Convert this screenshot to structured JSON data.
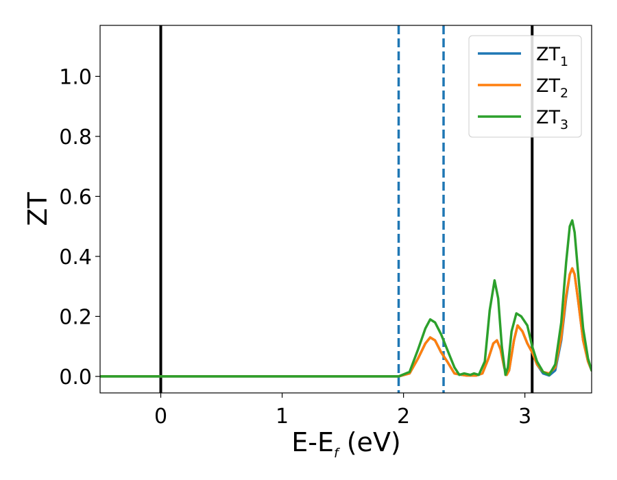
{
  "chart_data": {
    "type": "line",
    "title": "",
    "xlabel": {
      "base": "E-E",
      "sub": "f",
      "unit": " (eV)"
    },
    "ylabel": "ZT",
    "xlim": [
      -0.5,
      3.55
    ],
    "ylim": [
      -0.055,
      1.17
    ],
    "xticks": [
      0,
      1,
      2,
      3
    ],
    "yticks": [
      0.0,
      0.2,
      0.4,
      0.6,
      0.8,
      1.0
    ],
    "ytick_labels": [
      "0.0",
      "0.2",
      "0.4",
      "0.6",
      "0.8",
      "1.0"
    ],
    "grid": false,
    "legend_position": "top-right",
    "vlines": [
      {
        "x": 0.0,
        "style": "solid",
        "color": "#000000"
      },
      {
        "x": 3.06,
        "style": "solid",
        "color": "#000000"
      },
      {
        "x": 1.96,
        "style": "dashed",
        "color": "#1f77b4"
      },
      {
        "x": 2.33,
        "style": "dashed",
        "color": "#1f77b4"
      }
    ],
    "series": [
      {
        "name": "ZT",
        "sub": "1",
        "color": "#1f77b4",
        "x": [
          -0.5,
          1.96,
          2.05,
          2.12,
          2.18,
          2.22,
          2.26,
          2.31,
          2.36,
          2.42,
          2.48,
          2.52,
          2.56,
          2.6,
          2.65,
          2.7,
          2.74,
          2.77,
          2.8,
          2.83,
          2.85,
          2.87,
          2.91,
          2.94,
          2.98,
          3.02,
          3.06,
          3.1,
          3.15,
          3.2,
          3.25,
          3.3,
          3.34,
          3.37,
          3.39,
          3.41,
          3.44,
          3.48,
          3.52,
          3.55
        ],
        "y": [
          0.0,
          0.0,
          0.01,
          0.06,
          0.11,
          0.13,
          0.12,
          0.08,
          0.05,
          0.01,
          0.005,
          0.003,
          0.003,
          0.003,
          0.01,
          0.06,
          0.11,
          0.12,
          0.09,
          0.03,
          0.005,
          0.02,
          0.12,
          0.17,
          0.15,
          0.11,
          0.08,
          0.04,
          0.01,
          0.003,
          0.02,
          0.12,
          0.26,
          0.34,
          0.36,
          0.34,
          0.25,
          0.12,
          0.05,
          0.02
        ]
      },
      {
        "name": "ZT",
        "sub": "2",
        "color": "#ff7f0e",
        "x": [
          -0.5,
          1.96,
          2.05,
          2.12,
          2.18,
          2.22,
          2.26,
          2.31,
          2.36,
          2.42,
          2.48,
          2.52,
          2.56,
          2.6,
          2.65,
          2.7,
          2.74,
          2.77,
          2.8,
          2.83,
          2.85,
          2.87,
          2.91,
          2.94,
          2.98,
          3.02,
          3.06,
          3.1,
          3.15,
          3.2,
          3.25,
          3.3,
          3.34,
          3.37,
          3.39,
          3.41,
          3.44,
          3.48,
          3.52,
          3.55
        ],
        "y": [
          0.0,
          0.0,
          0.01,
          0.06,
          0.11,
          0.13,
          0.12,
          0.08,
          0.05,
          0.01,
          0.005,
          0.003,
          0.003,
          0.003,
          0.01,
          0.06,
          0.11,
          0.12,
          0.09,
          0.03,
          0.005,
          0.02,
          0.12,
          0.17,
          0.15,
          0.11,
          0.08,
          0.04,
          0.015,
          0.01,
          0.03,
          0.13,
          0.27,
          0.34,
          0.36,
          0.34,
          0.25,
          0.12,
          0.05,
          0.02
        ]
      },
      {
        "name": "ZT",
        "sub": "3",
        "color": "#2ca02c",
        "x": [
          -0.5,
          1.96,
          2.05,
          2.12,
          2.18,
          2.22,
          2.26,
          2.31,
          2.36,
          2.42,
          2.46,
          2.5,
          2.55,
          2.58,
          2.62,
          2.67,
          2.71,
          2.75,
          2.78,
          2.81,
          2.84,
          2.86,
          2.89,
          2.93,
          2.97,
          3.02,
          3.06,
          3.1,
          3.15,
          3.2,
          3.25,
          3.3,
          3.34,
          3.37,
          3.39,
          3.41,
          3.44,
          3.48,
          3.52,
          3.55
        ],
        "y": [
          0.0,
          0.0,
          0.015,
          0.09,
          0.16,
          0.19,
          0.18,
          0.14,
          0.09,
          0.03,
          0.005,
          0.01,
          0.005,
          0.01,
          0.005,
          0.05,
          0.22,
          0.32,
          0.26,
          0.1,
          0.005,
          0.03,
          0.15,
          0.21,
          0.2,
          0.17,
          0.1,
          0.05,
          0.015,
          0.005,
          0.04,
          0.18,
          0.38,
          0.5,
          0.52,
          0.48,
          0.34,
          0.16,
          0.06,
          0.02
        ]
      }
    ]
  }
}
